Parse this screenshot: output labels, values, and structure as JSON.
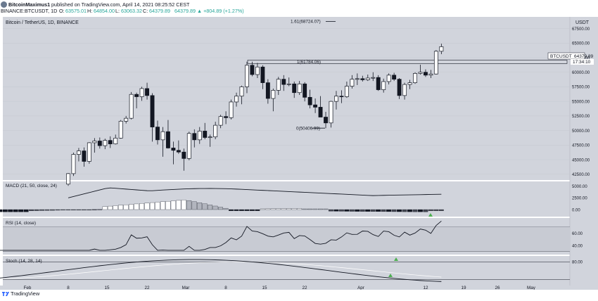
{
  "header": {
    "user": "BitcoinMaximus1",
    "published_text": "published on TradingView.com, April 14, 2021 08:25:52 CEST",
    "symbol_line": "BINANCE:BTCUSDT, 1D",
    "ohlc": [
      {
        "label": "O:",
        "value": "63575.01"
      },
      {
        "label": "H:",
        "value": "64854.00"
      },
      {
        "label": "L:",
        "value": "63063.32"
      },
      {
        "label": "C:",
        "value": "64379.89"
      }
    ],
    "change": "64379.89  ▲ +804.89 (+1.27%)"
  },
  "chart_title": "Bitcoin / TetherUS, 1D, BINANCE",
  "currency": "USDT",
  "price_label": {
    "symbol": "BTCUSDT",
    "price": "64379.89",
    "countdown": "17:34:10"
  },
  "fib_labels": [
    "1.61(68724.07)",
    "1(61784.06)",
    "0(50406.99)"
  ],
  "indicators": {
    "macd_label": "MACD (21, 50, close, 24)",
    "rsi_label": "RSI (14, close)",
    "stoch_label": "Stoch (14, 28, 14)"
  },
  "x_ticks": [
    "Feb",
    "8",
    "15",
    "22",
    "Mar",
    "8",
    "15",
    "22",
    "Apr",
    "12",
    "19",
    "26",
    "May"
  ],
  "footer": {
    "brand": "TradingView"
  },
  "colors": {
    "panel_bg": "#d1d4dc",
    "up": "#ffffff",
    "down": "#131722",
    "signal": "#4caf50"
  },
  "chart_data": {
    "type": "candlestick",
    "title": "Bitcoin / TetherUS, 1D, BINANCE",
    "x_tick_labels": [
      "Feb",
      "8",
      "15",
      "22",
      "Mar",
      "8",
      "15",
      "22",
      "Apr",
      "12",
      "19",
      "26",
      "May"
    ],
    "y_ticks": [
      42500,
      45000,
      47500,
      50000,
      52500,
      55000,
      57500,
      60000,
      62500,
      65000,
      67500
    ],
    "y_tick_labels": [
      "42500.00",
      "45000.00",
      "47500.00",
      "50000.00",
      "52500.00",
      "55000.00",
      "57500.00",
      "60000.00",
      "62500.00",
      "65000.00",
      "67500.00"
    ],
    "ylim": [
      41500,
      69500
    ],
    "horizontal_levels": [
      {
        "label": "1.61(68724.07)",
        "value": 68724.07
      },
      {
        "label": "1(61784.06)",
        "value": 61784.06
      },
      {
        "label": "0(50406.99)",
        "value": 50406.99
      }
    ],
    "candles": [
      [
        40800,
        42700,
        40500,
        42600
      ],
      [
        42600,
        46200,
        42200,
        45900
      ],
      [
        45900,
        47000,
        44700,
        46500
      ],
      [
        46500,
        47100,
        43800,
        44700
      ],
      [
        44700,
        48000,
        44300,
        47900
      ],
      [
        47900,
        48700,
        46200,
        48200
      ],
      [
        48200,
        48800,
        46900,
        47400
      ],
      [
        47400,
        48600,
        46800,
        48300
      ],
      [
        48300,
        49000,
        47000,
        47700
      ],
      [
        47700,
        49300,
        47600,
        48700
      ],
      [
        48700,
        51800,
        48600,
        51600
      ],
      [
        51600,
        52500,
        51200,
        52100
      ],
      [
        52100,
        56600,
        51900,
        56200
      ],
      [
        56200,
        56500,
        53800,
        55800
      ],
      [
        55800,
        57500,
        55100,
        57200
      ],
      [
        57200,
        58200,
        55300,
        56000
      ],
      [
        56000,
        56400,
        48100,
        50600
      ],
      [
        50600,
        51700,
        47600,
        48400
      ],
      [
        48400,
        50600,
        45500,
        49800
      ],
      [
        49800,
        51800,
        46900,
        47000
      ],
      [
        47000,
        48100,
        44200,
        46600
      ],
      [
        46600,
        48300,
        46000,
        46300
      ],
      [
        46300,
        46900,
        43100,
        45200
      ],
      [
        45200,
        49800,
        44900,
        49500
      ],
      [
        49500,
        50200,
        47100,
        48400
      ],
      [
        48400,
        50600,
        47700,
        49900
      ],
      [
        49900,
        51300,
        48500,
        48800
      ],
      [
        48800,
        49300,
        47200,
        48900
      ],
      [
        48900,
        51500,
        48500,
        50900
      ],
      [
        50900,
        52700,
        50400,
        52400
      ],
      [
        52400,
        53300,
        51100,
        52200
      ],
      [
        52200,
        55300,
        51900,
        54900
      ],
      [
        54900,
        56500,
        54100,
        55900
      ],
      [
        55900,
        57700,
        54500,
        57500
      ],
      [
        57500,
        61800,
        56400,
        61200
      ],
      [
        61200,
        61800,
        59300,
        59600
      ],
      [
        59600,
        61600,
        59000,
        60900
      ],
      [
        60900,
        61200,
        57100,
        58200
      ],
      [
        58200,
        58800,
        54600,
        55500
      ],
      [
        55500,
        57200,
        53300,
        56900
      ],
      [
        56900,
        59200,
        56100,
        58800
      ],
      [
        58800,
        59500,
        56800,
        57900
      ],
      [
        57900,
        59100,
        57600,
        58000
      ],
      [
        58000,
        58400,
        55600,
        56500
      ],
      [
        56500,
        58500,
        56100,
        58000
      ],
      [
        58000,
        58300,
        55000,
        55700
      ],
      [
        55700,
        57000,
        53800,
        54400
      ],
      [
        54400,
        55500,
        53000,
        54000
      ],
      [
        54000,
        55900,
        52300,
        52300
      ],
      [
        52300,
        53200,
        50400,
        51300
      ],
      [
        51300,
        55100,
        50500,
        55000
      ],
      [
        55000,
        56800,
        53600,
        55900
      ],
      [
        55900,
        56900,
        54700,
        55800
      ],
      [
        55800,
        58400,
        55600,
        57600
      ],
      [
        57600,
        59500,
        57200,
        58800
      ],
      [
        58800,
        59800,
        57800,
        58900
      ],
      [
        58900,
        59400,
        58400,
        58700
      ],
      [
        58700,
        59600,
        58500,
        59000
      ],
      [
        59000,
        60000,
        58500,
        59100
      ],
      [
        59100,
        59500,
        56800,
        57000
      ],
      [
        57000,
        58900,
        56500,
        58400
      ],
      [
        58400,
        59800,
        57900,
        59500
      ],
      [
        59500,
        59900,
        58500,
        58800
      ],
      [
        58800,
        59000,
        55400,
        56000
      ],
      [
        56000,
        58200,
        55300,
        57900
      ],
      [
        57900,
        58700,
        57100,
        58200
      ],
      [
        58200,
        60000,
        58000,
        59800
      ],
      [
        59800,
        61300,
        59600,
        60000
      ],
      [
        60000,
        60500,
        59200,
        59500
      ],
      [
        59500,
        60400,
        59000,
        59700
      ],
      [
        59700,
        63800,
        59600,
        63600
      ],
      [
        63600,
        64900,
        63100,
        64380
      ]
    ],
    "macd": {
      "ylim": [
        -1500,
        6000
      ],
      "y_ticks": [
        0,
        2500,
        5000
      ],
      "y_tick_labels": [
        "0.00",
        "2500.00",
        "5000.00"
      ]
    },
    "rsi": {
      "ylim": [
        25,
        85
      ],
      "y_ticks": [
        40,
        60
      ],
      "y_tick_labels": [
        "40.00",
        "60.00"
      ],
      "bands": [
        30,
        70
      ]
    },
    "stoch": {
      "ylim": [
        0,
        100
      ],
      "y_ticks": [
        80
      ],
      "y_tick_labels": [
        "80.00"
      ]
    }
  }
}
